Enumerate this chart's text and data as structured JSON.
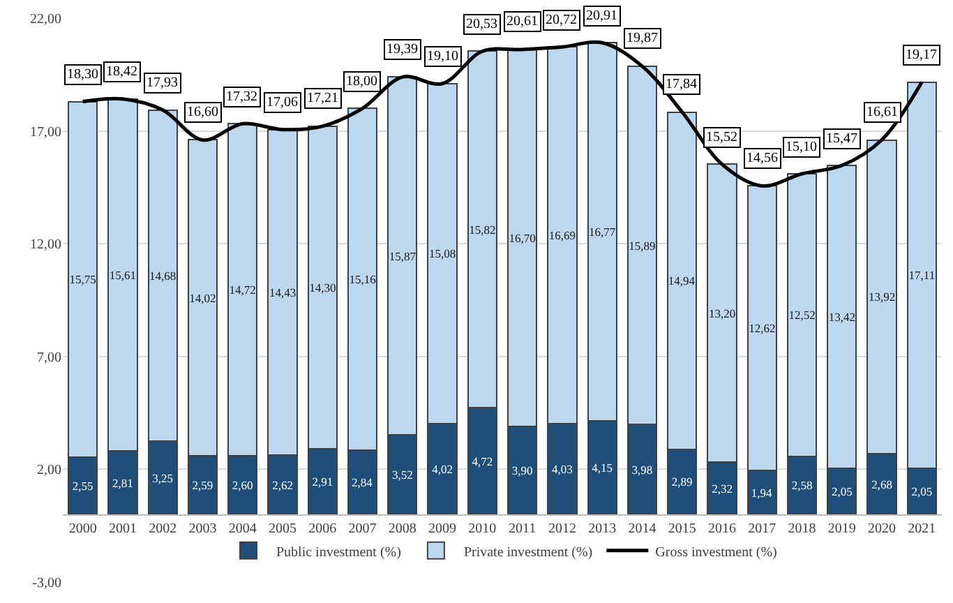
{
  "chart_data": {
    "type": "bar",
    "stacked": true,
    "categories": [
      "2000",
      "2001",
      "2002",
      "2003",
      "2004",
      "2005",
      "2006",
      "2007",
      "2008",
      "2009",
      "2010",
      "2011",
      "2012",
      "2013",
      "2014",
      "2015",
      "2016",
      "2017",
      "2018",
      "2019",
      "2020",
      "2021"
    ],
    "series": [
      {
        "name": "Public investment (%)",
        "color": "#1f4e79",
        "values": [
          2.55,
          2.81,
          3.25,
          2.59,
          2.6,
          2.62,
          2.91,
          2.84,
          3.52,
          4.02,
          4.72,
          3.9,
          4.03,
          4.15,
          3.98,
          2.89,
          2.32,
          1.94,
          2.58,
          2.05,
          2.68,
          2.05
        ],
        "value_labels": [
          "2,55",
          "2,81",
          "3,25",
          "2,59",
          "2,60",
          "2,62",
          "2,91",
          "2,84",
          "3,52",
          "4,02",
          "4,72",
          "3,90",
          "4,03",
          "4,15",
          "3,98",
          "2,89",
          "2,32",
          "1,94",
          "2,58",
          "2,05",
          "2,68",
          "2,05"
        ]
      },
      {
        "name": "Private investment (%)",
        "color": "#bdd7ee",
        "values": [
          15.75,
          15.61,
          14.68,
          14.02,
          14.72,
          14.43,
          14.3,
          15.16,
          15.87,
          15.08,
          15.82,
          16.7,
          16.69,
          16.77,
          15.89,
          14.94,
          13.2,
          12.62,
          12.52,
          13.42,
          13.92,
          17.11
        ],
        "value_labels": [
          "15,75",
          "15,61",
          "14,68",
          "14,02",
          "14,72",
          "14,43",
          "14,30",
          "15,16",
          "15,87",
          "15,08",
          "15,82",
          "16,70",
          "16,69",
          "16,77",
          "15,89",
          "14,94",
          "13,20",
          "12,62",
          "12,52",
          "13,42",
          "13,92",
          "17,11"
        ]
      },
      {
        "name": "Gross investment (%)",
        "type": "line",
        "color": "#000000",
        "values": [
          18.3,
          18.42,
          17.93,
          16.6,
          17.32,
          17.06,
          17.21,
          18.0,
          19.39,
          19.1,
          20.53,
          20.61,
          20.72,
          20.91,
          19.87,
          17.84,
          15.52,
          14.56,
          15.1,
          15.47,
          16.61,
          19.17
        ],
        "value_labels": [
          "18,30",
          "18,42",
          "17,93",
          "16,60",
          "17,32",
          "17,06",
          "17,21",
          "18,00",
          "19,39",
          "19,10",
          "20,53",
          "20,61",
          "20,72",
          "20,91",
          "19,87",
          "17,84",
          "15,52",
          "14,56",
          "15,10",
          "15,47",
          "16,61",
          "19,17"
        ]
      }
    ],
    "ylim": [
      -3,
      22
    ],
    "yticks": [
      {
        "value": -3,
        "label": "-3,00"
      },
      {
        "value": 2,
        "label": "2,00"
      },
      {
        "value": 7,
        "label": "7,00"
      },
      {
        "value": 12,
        "label": "12,00"
      },
      {
        "value": 17,
        "label": "17,00"
      },
      {
        "value": 22,
        "label": "22,00"
      }
    ],
    "grid": "y",
    "legend": "bottom",
    "marker": "none",
    "line_style": "solid"
  }
}
